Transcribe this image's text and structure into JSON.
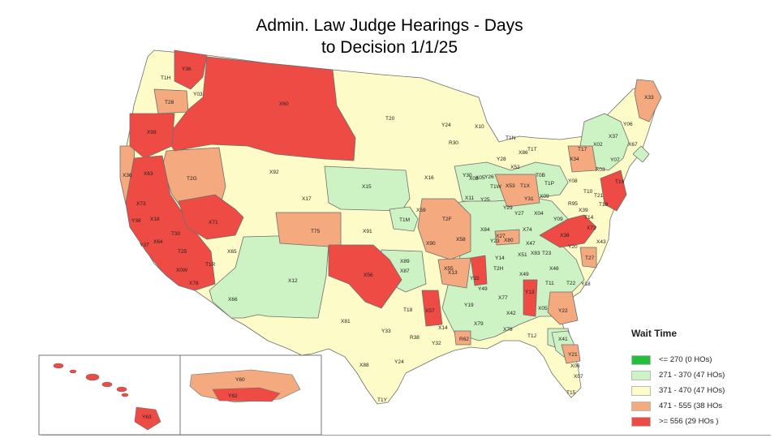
{
  "title": {
    "line1": "Admin. Law Judge Hearings - Days",
    "line2": "to Decision 1/1/25"
  },
  "colors": {
    "le_270": "#22c03a",
    "c_271_370": "#cdf2c3",
    "c_371_470": "#fdfcc8",
    "c_471_555": "#f4a97f",
    "ge_556": "#ef4b45",
    "border": "#6e6e6e"
  },
  "legend": {
    "title": "Wait Time",
    "items": [
      {
        "label": "<= 270 (0 HOs)",
        "color": "#22c03a"
      },
      {
        "label": "271 - 370 (47 HOs)",
        "color": "#cdf2c3"
      },
      {
        "label": "371 - 470 (47 HOs)",
        "color": "#fdfcc8"
      },
      {
        "label": "471 - 555  (38 HOs",
        "color": "#f4a97f"
      },
      {
        "label": ">= 556 (29 HOs )",
        "color": "#ef4b45"
      }
    ]
  },
  "labels": {
    "T1H": "T1H",
    "Y36": "Y36",
    "T28": "T28",
    "Y03": "Y03",
    "X60": "X60",
    "X99": "X99",
    "T20": "T20",
    "X36": "X36",
    "X63": "X63",
    "T2G": "T2G",
    "X92": "X92",
    "X15": "X15",
    "X17": "X17",
    "X71": "X71",
    "X18": "X18",
    "X73": "X73",
    "Y38": "Y38",
    "T30": "T30",
    "T75": "T75",
    "X91": "X91",
    "X64": "X64",
    "Y37": "Y37",
    "T25": "T25",
    "X65": "X65",
    "T1R": "T1R",
    "X0W": "X0W",
    "X78": "X78",
    "X12": "X12",
    "X66": "X66",
    "X56": "X56",
    "X89": "X89",
    "X81": "X81",
    "X88": "X88",
    "Y33": "Y33",
    "T1Y": "T1Y",
    "Y24": "Y24",
    "R30": "R30",
    "X10": "X10",
    "X16": "X16",
    "X59": "X59",
    "T1M": "T1M",
    "X11": "X11",
    "Y30": "Y30",
    "T2F": "T2F",
    "X90": "X90",
    "X58": "X58",
    "X55": "X55",
    "X13": "X13",
    "X87": "X87",
    "Y15": "Y15",
    "X57": "X57",
    "T18": "T18",
    "X14": "X14",
    "R38": "R38",
    "Y32": "Y32",
    "Y24b": "Y24",
    "R62": "R62",
    "Y19": "Y19",
    "X79": "X79",
    "X77": "X77",
    "X42": "X42",
    "X78b": "X78",
    "T1J": "T1J",
    "Y13": "Y13",
    "Y49": "Y49",
    "T2H": "T2H",
    "Y14": "Y14",
    "X84": "X84",
    "X80": "X80",
    "Y23": "Y23",
    "X74": "X74",
    "X47": "X47",
    "X51": "X51",
    "X83": "X83",
    "X48": "X48",
    "T23": "T23",
    "X49": "X49",
    "T11": "T11",
    "Y20": "Y20",
    "T27": "T27",
    "X38": "X38",
    "X72": "X72",
    "X43": "X43",
    "T22": "T22",
    "Y18": "Y18",
    "Y22": "Y22",
    "X41": "X41",
    "Y21": "Y21",
    "X06": "X06",
    "X07": "X07",
    "T15": "T15",
    "X05": "X05",
    "X27": "X27",
    "T1N": "T1N",
    "Y28": "Y28",
    "X52": "X52",
    "T1W": "T1W",
    "X53": "X53",
    "T1X": "T1X",
    "Y31": "Y31",
    "X09": "X09",
    "Y29": "Y29",
    "Y27": "Y27",
    "X04": "X04",
    "Y09": "Y09",
    "X33": "X33",
    "Y06": "Y06",
    "X37": "X37",
    "X02": "X02",
    "X67": "X67",
    "Y07": "Y07",
    "X03": "X03",
    "T17": "T17",
    "X34": "X34",
    "Y08": "Y08",
    "T1P": "T1P",
    "T16": "T16",
    "T21": "T21",
    "R95": "R95",
    "T0B": "T0B",
    "Y25": "Y25",
    "X05b": "X05",
    "T1T": "T1T",
    "X86": "X86",
    "Y63": "Y63",
    "Y60": "Y60",
    "Y62": "Y62",
    "Y26": "Y26",
    "X08": "X08",
    "T10": "T10",
    "T19": "T19",
    "X39": "X39",
    "T14": "T14"
  }
}
